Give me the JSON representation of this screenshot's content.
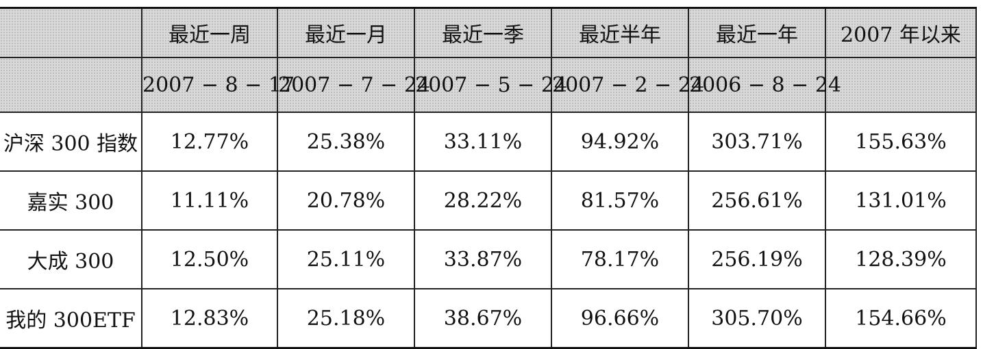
{
  "table": {
    "columns": [
      "最近一周",
      "最近一月",
      "最近一季",
      "最近半年",
      "最近一年",
      "2007 年以来"
    ],
    "dates": [
      "2007 − 8 − 17",
      "2007 − 7 − 24",
      "2007 − 5 − 24",
      "2007 − 2 − 24",
      "2006 − 8 − 24"
    ],
    "rows": [
      {
        "label": "沪深 300 指数",
        "values": [
          "12.77%",
          "25.38%",
          "33.11%",
          "94.92%",
          "303.71%",
          "155.63%"
        ]
      },
      {
        "label": "嘉实 300",
        "values": [
          "11.11%",
          "20.78%",
          "28.22%",
          "81.57%",
          "256.61%",
          "131.01%"
        ]
      },
      {
        "label": "大成 300",
        "values": [
          "12.50%",
          "25.11%",
          "33.87%",
          "78.17%",
          "256.19%",
          "128.39%"
        ]
      },
      {
        "label": "我的 300ETF",
        "values": [
          "12.83%",
          "25.18%",
          "38.67%",
          "96.66%",
          "305.70%",
          "154.66%"
        ]
      }
    ]
  }
}
